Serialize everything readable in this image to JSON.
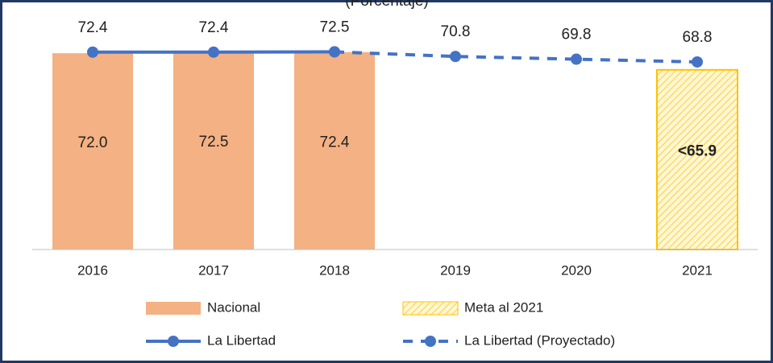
{
  "chart_data": {
    "type": "bar_line",
    "subtitle": "(Porcentaje)",
    "categories": [
      "2016",
      "2017",
      "2018",
      "2019",
      "2020",
      "2021"
    ],
    "ylim": [
      0,
      80
    ],
    "series": [
      {
        "name": "Nacional",
        "type": "bar",
        "color": "#f4b183",
        "values": [
          72.0,
          72.5,
          72.4,
          null,
          null,
          null
        ],
        "value_labels": [
          "72.0",
          "72.5",
          "72.4",
          null,
          null,
          null
        ]
      },
      {
        "name": "Meta al 2021",
        "type": "bar",
        "pattern": "hatch",
        "color": "#ffc000",
        "values": [
          null,
          null,
          null,
          null,
          null,
          65.9
        ],
        "value_labels": [
          null,
          null,
          null,
          null,
          null,
          "<65.9"
        ]
      },
      {
        "name": "La Libertad",
        "type": "line",
        "color": "#4472c4",
        "values": [
          72.4,
          72.4,
          72.5,
          null,
          null,
          null
        ]
      },
      {
        "name": "La Libertad (Proyectado)",
        "type": "line",
        "dashed": true,
        "color": "#4472c4",
        "values": [
          null,
          null,
          72.5,
          70.8,
          69.8,
          68.8
        ]
      }
    ]
  }
}
